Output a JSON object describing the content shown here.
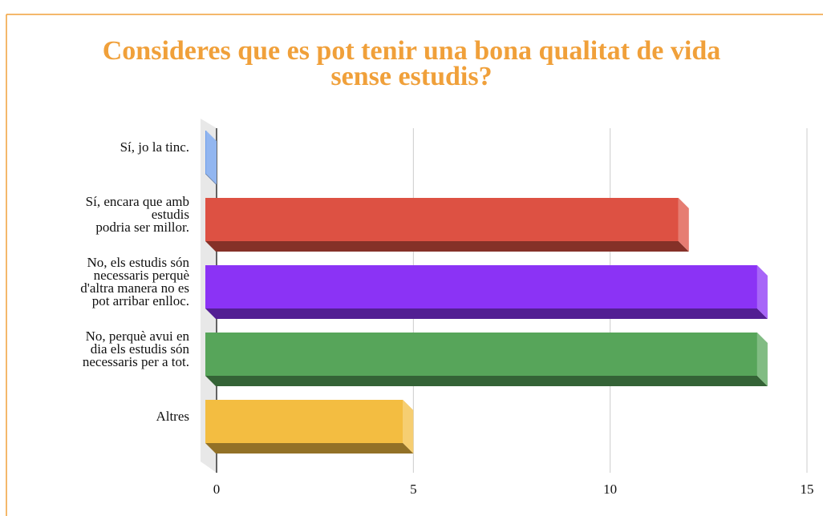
{
  "chart_data": {
    "type": "bar3d",
    "title": "Consideres que es pot tenir una bona qualitat de vida\nsense estudis?",
    "categories": [
      "Sí, jo la tinc.",
      "Sí, encara que amb\nestudis\npodria ser millor.",
      "No, els estudis són\nnecessaris perquè\nd'altra manera no es\npot arribar enlloc.",
      "No, perquè avui en\ndia els estudis són\nnecessaris per a tot.",
      "Altres"
    ],
    "values": [
      0,
      12,
      14,
      14,
      5
    ],
    "colors": [
      "#6d9eeb",
      "#dd5143",
      "#8b33f5",
      "#57a55a",
      "#f3bd41"
    ],
    "xlim": [
      0,
      15
    ],
    "xticks": [
      0,
      5,
      10,
      15
    ],
    "grid": true
  }
}
